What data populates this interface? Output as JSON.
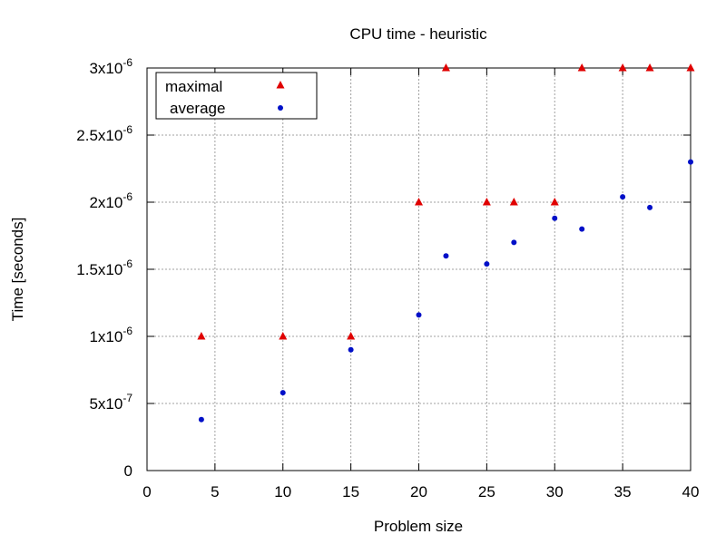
{
  "chart_data": {
    "type": "scatter",
    "title": "CPU time - heuristic",
    "xlabel": "Problem size",
    "ylabel": "Time [seconds]",
    "xlim": [
      0,
      40
    ],
    "ylim": [
      0,
      3e-06
    ],
    "grid": true,
    "legend_position": "top-left",
    "x_ticks": [
      {
        "value": 0,
        "label": "0"
      },
      {
        "value": 5,
        "label": "5"
      },
      {
        "value": 10,
        "label": "10"
      },
      {
        "value": 15,
        "label": "15"
      },
      {
        "value": 20,
        "label": "20"
      },
      {
        "value": 25,
        "label": "25"
      },
      {
        "value": 30,
        "label": "30"
      },
      {
        "value": 35,
        "label": "35"
      },
      {
        "value": 40,
        "label": "40"
      }
    ],
    "y_ticks": [
      {
        "value": 0,
        "mant": "0",
        "exp": ""
      },
      {
        "value": 5e-07,
        "mant": "5x10",
        "exp": "-7"
      },
      {
        "value": 1e-06,
        "mant": "1x10",
        "exp": "-6"
      },
      {
        "value": 1.5e-06,
        "mant": "1.5x10",
        "exp": "-6"
      },
      {
        "value": 2e-06,
        "mant": "2x10",
        "exp": "-6"
      },
      {
        "value": 2.5e-06,
        "mant": "2.5x10",
        "exp": "-6"
      },
      {
        "value": 3e-06,
        "mant": "3x10",
        "exp": "-6"
      }
    ],
    "series": [
      {
        "name": "maximal",
        "marker": "triangle",
        "color": "#e00000",
        "points": [
          {
            "x": 4,
            "y": 1e-06
          },
          {
            "x": 10,
            "y": 1e-06
          },
          {
            "x": 15,
            "y": 1e-06
          },
          {
            "x": 20,
            "y": 2e-06
          },
          {
            "x": 22,
            "y": 3e-06
          },
          {
            "x": 25,
            "y": 2e-06
          },
          {
            "x": 27,
            "y": 2e-06
          },
          {
            "x": 30,
            "y": 2e-06
          },
          {
            "x": 32,
            "y": 3e-06
          },
          {
            "x": 35,
            "y": 3e-06
          },
          {
            "x": 37,
            "y": 3e-06
          },
          {
            "x": 40,
            "y": 3e-06
          }
        ]
      },
      {
        "name": "average",
        "marker": "circle",
        "color": "#0010c8",
        "points": [
          {
            "x": 4,
            "y": 3.8e-07
          },
          {
            "x": 10,
            "y": 5.8e-07
          },
          {
            "x": 15,
            "y": 9e-07
          },
          {
            "x": 20,
            "y": 1.16e-06
          },
          {
            "x": 22,
            "y": 1.6e-06
          },
          {
            "x": 25,
            "y": 1.54e-06
          },
          {
            "x": 27,
            "y": 1.7e-06
          },
          {
            "x": 30,
            "y": 1.88e-06
          },
          {
            "x": 32,
            "y": 1.8e-06
          },
          {
            "x": 35,
            "y": 2.04e-06
          },
          {
            "x": 37,
            "y": 1.96e-06
          },
          {
            "x": 40,
            "y": 2.3e-06
          }
        ]
      }
    ]
  }
}
